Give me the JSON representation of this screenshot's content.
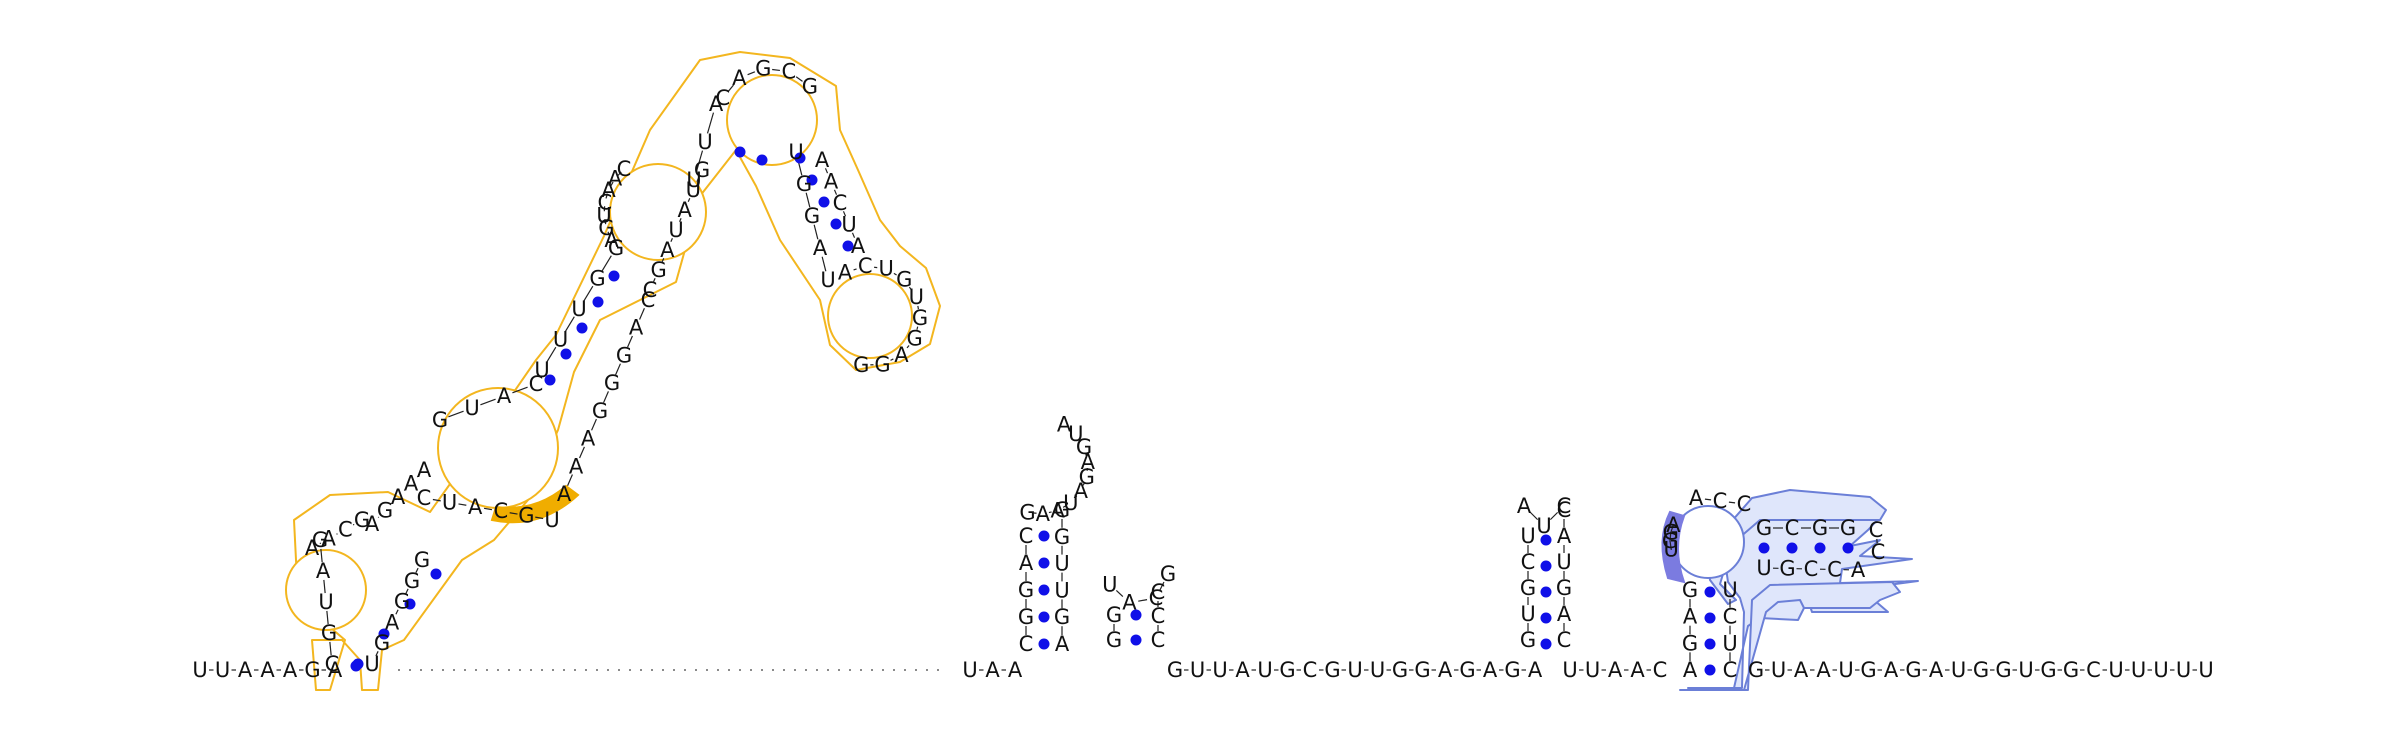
{
  "colors": {
    "base_pair": "#1010e8",
    "outline_orange": "#f3b61f",
    "highlight_orange": "#f0ad00",
    "outline_blue": "#6b7fd7",
    "fill_blue": "#dfe6fb",
    "highlight_violet": "#7b7be0",
    "text": "#111111"
  },
  "icons": [
    "base-pair-dot",
    "hairpin-loop",
    "stem-outline",
    "highlight-blob"
  ],
  "sequence": {
    "five_prime": "UUAAAGA",
    "five_prime_3p": "UAA",
    "mid_run": "GUUAUGCGUUGGAGAGA",
    "pre_blue": "UUAAC",
    "three_prime": "GUAAUGAGAUGGUGGCUUUUU"
  },
  "letters": {
    "orange": {
      "left_hairpin_5p": [
        "C",
        "G",
        "U",
        "A",
        "G"
      ],
      "left_hairpin_top": [
        "A",
        "A",
        "C",
        "G"
      ],
      "left_hairpin_3p": [
        "U",
        "G",
        "A",
        "G",
        "G",
        "G"
      ],
      "bulge_left": [
        "A",
        "G",
        "A",
        "A",
        "A"
      ],
      "bulge_top": [
        "G",
        "U",
        "A",
        "C"
      ],
      "bulge_inner_3p": [
        "C",
        "U",
        "A",
        "C",
        "G",
        "U"
      ],
      "stem2_5p": [
        "U",
        "U",
        "U",
        "G",
        "G"
      ],
      "stem2_3p": [
        "A",
        "A",
        "A",
        "G",
        "G",
        "G",
        "A",
        "C"
      ],
      "loop2": [
        "A",
        "G",
        "U",
        "C",
        "A",
        "A",
        "C"
      ],
      "loop2_3p": [
        "C",
        "G",
        "A",
        "U",
        "A",
        "U",
        "G"
      ],
      "stem3_5p": [
        "U",
        "U",
        "A"
      ],
      "loop3_top": [
        "C",
        "A",
        "G",
        "C",
        "G"
      ],
      "stem3_3p": [
        "A",
        "A",
        "C",
        "U",
        "A"
      ],
      "term_loop": [
        "A",
        "C",
        "U",
        "G",
        "U",
        "G",
        "G",
        "A",
        "G",
        "G"
      ],
      "term_3p": [
        "U",
        "G",
        "G",
        "A",
        "U"
      ]
    },
    "hairpin1_5p": [
      "C",
      "G",
      "G",
      "A",
      "C"
    ],
    "hairpin1_3p": [
      "A",
      "G",
      "U",
      "U",
      "G",
      "G"
    ],
    "hairpin1_loop": [
      "G",
      "A",
      "A",
      "U",
      "A",
      "G",
      "A",
      "G",
      "U",
      "A"
    ],
    "hairpin2_5p": [
      "G",
      "G"
    ],
    "hairpin2_3p": [
      "C",
      "C",
      "C"
    ],
    "hairpin2_loop": [
      "U",
      "A",
      "C",
      "G"
    ],
    "hairpin3_5p": [
      "G",
      "U",
      "G",
      "C",
      "U"
    ],
    "hairpin3_3p": [
      "C",
      "A",
      "G",
      "U",
      "A",
      "C"
    ],
    "hairpin3_loop": [
      "A",
      "U",
      "C"
    ],
    "blue_5p": [
      "A",
      "G",
      "A",
      "G"
    ],
    "blue_3p": [
      "C",
      "U",
      "C",
      "U"
    ],
    "blue_violet": [
      "A",
      "G",
      "G",
      "U"
    ],
    "blue_loop_top": [
      "A",
      "C",
      "C"
    ],
    "blue_arm_top": [
      "G",
      "C",
      "G",
      "G"
    ],
    "blue_arm_bottom": [
      "U",
      "G",
      "C",
      "C",
      "A"
    ],
    "blue_arm_cap": [
      "C",
      "C"
    ]
  }
}
